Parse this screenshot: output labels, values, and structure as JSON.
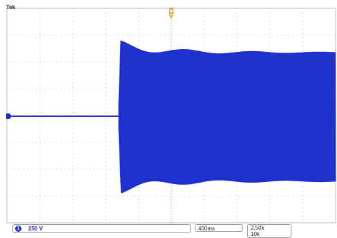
{
  "scope": {
    "brand": "Tek"
  },
  "status_bar": {
    "channel_number": "1",
    "channel_scale": "250 V",
    "timebase": "400ms",
    "sample_rate": "2.50k",
    "record_length": "10k"
  },
  "colors": {
    "waveform": "#1d2fcc",
    "trigger_marker": "#f2a33a",
    "grid": "#b8b8b8",
    "grid_center": "#8f8f8f",
    "background": "#ffffff"
  },
  "icons": {
    "trigger_position": "trigger-position-icon",
    "channel_ground": "channel-ground-marker-icon"
  }
}
